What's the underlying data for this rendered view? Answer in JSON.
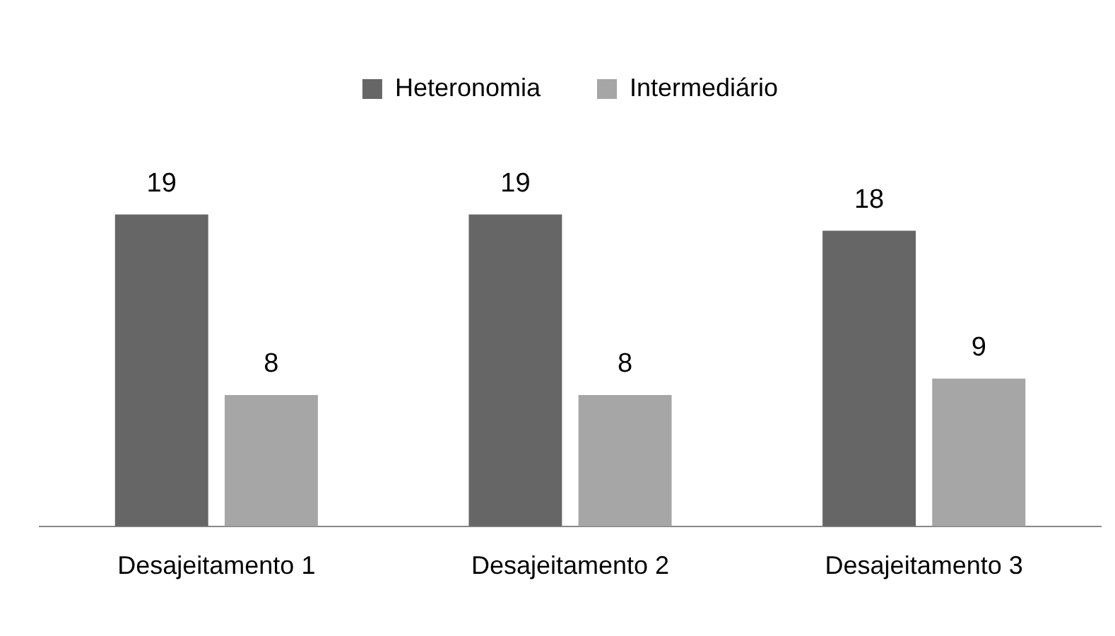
{
  "chart_data": {
    "type": "bar",
    "categories": [
      "Desajeitamento 1",
      "Desajeitamento 2",
      "Desajeitamento 3"
    ],
    "series": [
      {
        "name": "Heteronomia",
        "color": "#666666",
        "values": [
          19,
          19,
          18
        ]
      },
      {
        "name": "Intermediário",
        "color": "#a6a6a6",
        "values": [
          8,
          8,
          9
        ]
      }
    ],
    "data_labels": true,
    "legend": "top",
    "grid": false
  }
}
